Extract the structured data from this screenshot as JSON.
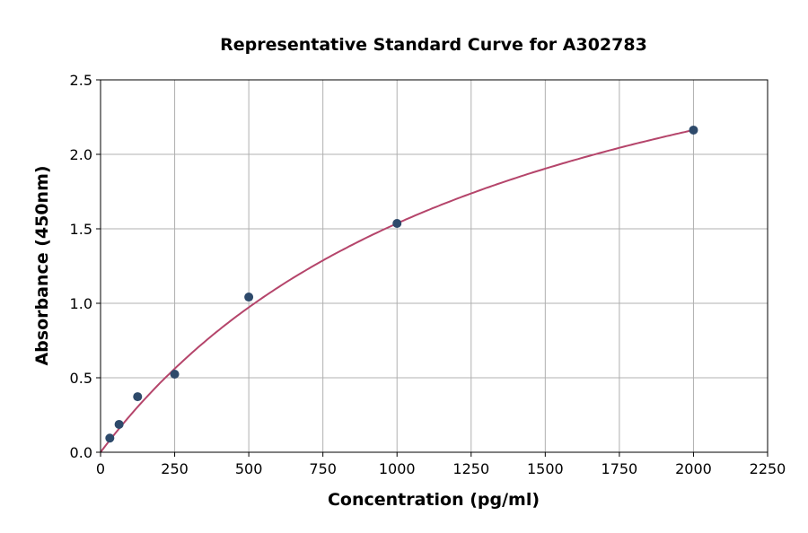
{
  "chart_data": {
    "type": "scatter",
    "title": "Representative Standard Curve for A302783",
    "xlabel": "Concentration (pg/ml)",
    "ylabel": "Absorbance (450nm)",
    "xlim": [
      0,
      2250
    ],
    "ylim": [
      0,
      2.5
    ],
    "xticks": [
      0,
      250,
      500,
      750,
      1000,
      1250,
      1500,
      1750,
      2000,
      2250
    ],
    "yticks": [
      "0.0",
      "0.5",
      "1.0",
      "1.5",
      "2.0",
      "2.5"
    ],
    "grid": true,
    "points": [
      {
        "x": 31.25,
        "y": 0.095
      },
      {
        "x": 62.5,
        "y": 0.187
      },
      {
        "x": 125,
        "y": 0.373
      },
      {
        "x": 250,
        "y": 0.524
      },
      {
        "x": 500,
        "y": 1.042
      },
      {
        "x": 1000,
        "y": 1.536
      },
      {
        "x": 2000,
        "y": 2.163
      }
    ],
    "fit_curve": true,
    "colors": {
      "points": "#2e4a6b",
      "curve": "#b5456b",
      "grid": "#b0b0b0"
    }
  }
}
